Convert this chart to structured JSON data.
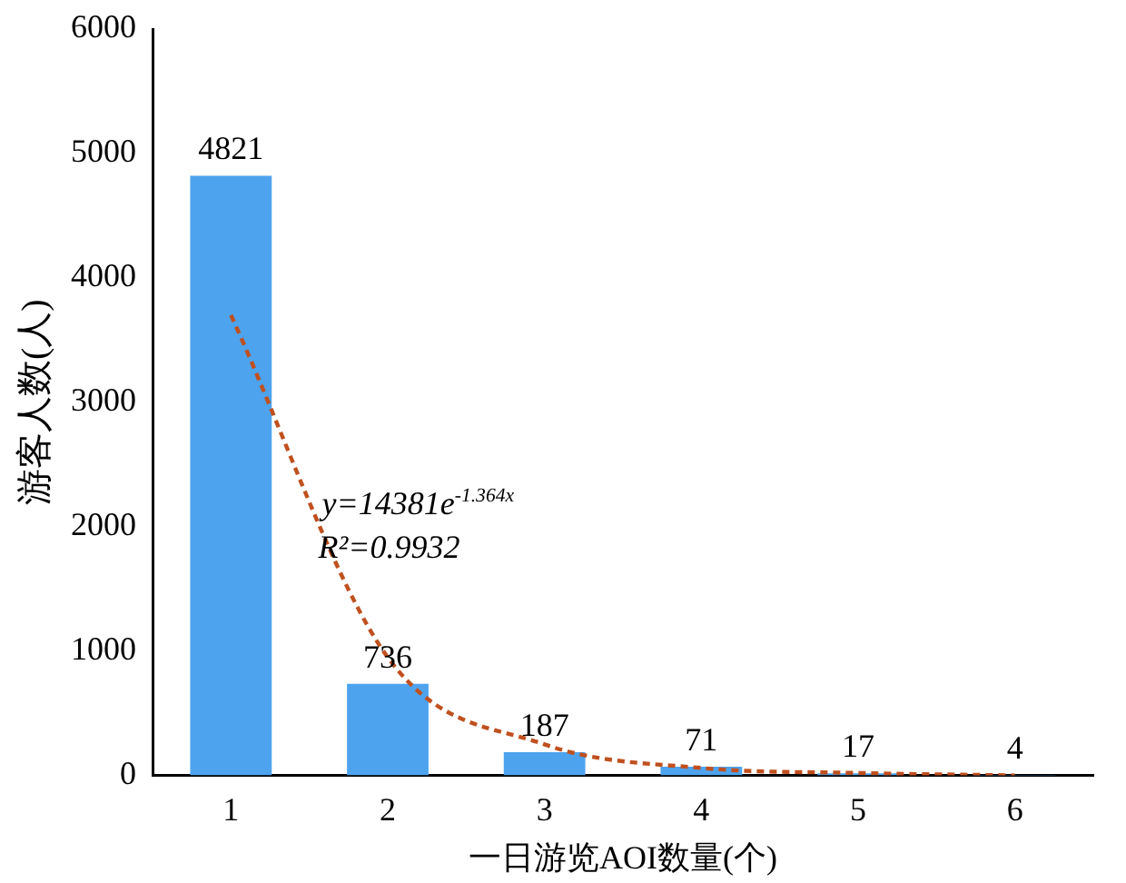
{
  "chart_data": {
    "type": "bar",
    "xlabel": "一日游览AOI数量(个)",
    "ylabel": "游客人数(人)",
    "categories": [
      "1",
      "2",
      "3",
      "4",
      "5",
      "6"
    ],
    "series": [
      {
        "color": "#4da3ee",
        "values": [
          4821,
          736,
          187,
          71,
          17,
          4
        ],
        "value_labels": [
          "4821",
          "736",
          "187",
          "71",
          "17",
          "4"
        ]
      },
      {
        "type": "line",
        "color": "#c0501e",
        "line_style": "dashed",
        "marker": "none",
        "values": [
          3700,
          950,
          250,
          60,
          20,
          0
        ]
      }
    ],
    "ylim": [
      0,
      6000
    ],
    "yticks": [
      0,
      1000,
      2000,
      3000,
      4000,
      5000,
      6000
    ],
    "grid": false,
    "legend": false,
    "annotations": [
      "y=14381e$^{-1.364x}$",
      "R²=0.9932"
    ]
  }
}
